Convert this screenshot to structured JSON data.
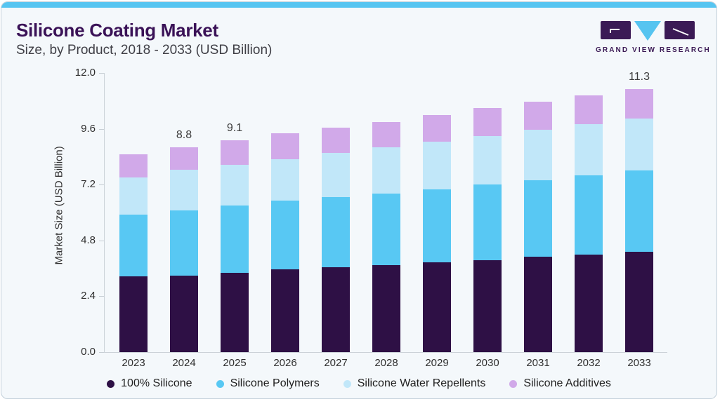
{
  "page": {
    "title": "Silicone Coating Market",
    "subtitle": "Size, by Product, 2018 - 2033 (USD Billion)",
    "accent_color": "#57c5f1",
    "card_background": "#f4f8fb"
  },
  "logo": {
    "text": "GRAND VIEW RESEARCH",
    "purple": "#3b1a55",
    "blue": "#56c4f0"
  },
  "chart_data": {
    "type": "bar",
    "stacked": true,
    "title": "Silicone Coating Market Size, by Product, 2018 - 2033 (USD Billion)",
    "ylabel": "Market Size (USD Billion)",
    "xlabel": "",
    "ylim": [
      0,
      12
    ],
    "yticks": [
      "0.0",
      "2.4",
      "4.8",
      "7.2",
      "9.6",
      "12.0"
    ],
    "grid": false,
    "legend_position": "bottom",
    "categories": [
      "2023",
      "2024",
      "2025",
      "2026",
      "2027",
      "2028",
      "2029",
      "2030",
      "2031",
      "2032",
      "2033"
    ],
    "series": [
      {
        "name": "100% Silicone",
        "color": "#2e1045",
        "values": [
          3.25,
          3.3,
          3.4,
          3.55,
          3.65,
          3.75,
          3.85,
          3.95,
          4.1,
          4.2,
          4.3
        ]
      },
      {
        "name": "Silicone Polymers",
        "color": "#58c8f3",
        "values": [
          2.65,
          2.8,
          2.9,
          2.95,
          3.0,
          3.05,
          3.15,
          3.25,
          3.3,
          3.4,
          3.5
        ]
      },
      {
        "name": "Silicone Water Repellents",
        "color": "#c1e7f9",
        "values": [
          1.6,
          1.75,
          1.75,
          1.8,
          1.9,
          2.0,
          2.05,
          2.1,
          2.15,
          2.2,
          2.25
        ]
      },
      {
        "name": "Silicone Additives",
        "color": "#d1a9e9",
        "values": [
          1.0,
          0.95,
          1.05,
          1.1,
          1.1,
          1.1,
          1.15,
          1.2,
          1.2,
          1.25,
          1.25
        ]
      }
    ],
    "totals": [
      8.5,
      8.8,
      9.1,
      9.4,
      9.65,
      9.9,
      10.2,
      10.5,
      10.75,
      11.05,
      11.3
    ],
    "total_labels": {
      "2024": "8.8",
      "2025": "9.1",
      "2033": "11.3"
    }
  }
}
